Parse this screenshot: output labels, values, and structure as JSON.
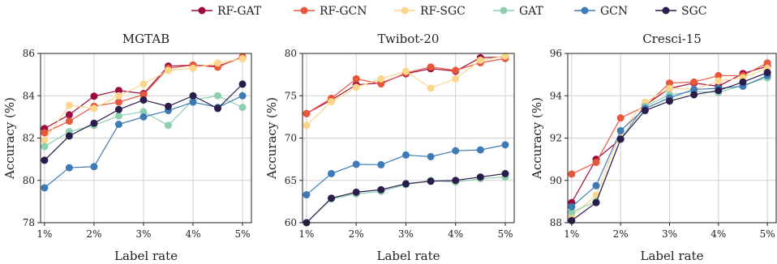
{
  "legend": [
    {
      "name": "RF-GAT",
      "color": "#9b0a3f"
    },
    {
      "name": "RF-GCN",
      "color": "#e8573c"
    },
    {
      "name": "RF-SGC",
      "color": "#fdd58b"
    },
    {
      "name": "GAT",
      "color": "#8fcfb0"
    },
    {
      "name": "GCN",
      "color": "#3e7bb6"
    },
    {
      "name": "SGC",
      "color": "#2b1d4b"
    }
  ],
  "chart_data": [
    {
      "type": "line",
      "title": "MGTAB",
      "xlabel": "Label rate",
      "ylabel": "Accuracy (%)",
      "x": [
        1,
        1.5,
        2,
        2.5,
        3,
        3.5,
        4,
        4.5,
        5
      ],
      "xticks": [
        1,
        2,
        3,
        4,
        5
      ],
      "xtick_labels": [
        "1%",
        "2%",
        "3%",
        "4%",
        "5%"
      ],
      "xlim": [
        0.92,
        5.18
      ],
      "ylim": [
        78,
        86
      ],
      "yticks": [
        78,
        80,
        82,
        84,
        86
      ],
      "grid": true,
      "series": [
        {
          "name": "RF-GAT",
          "values": [
            82.45,
            83.1,
            83.98,
            84.25,
            84.1,
            85.4,
            85.45,
            85.4,
            85.8
          ]
        },
        {
          "name": "RF-GCN",
          "values": [
            82.25,
            82.8,
            83.5,
            83.7,
            84.05,
            85.3,
            85.45,
            85.35,
            85.85
          ]
        },
        {
          "name": "RF-SGC",
          "values": [
            81.9,
            83.55,
            83.4,
            84.0,
            84.55,
            85.2,
            85.3,
            85.55,
            85.75
          ]
        },
        {
          "name": "GAT",
          "values": [
            81.6,
            82.3,
            82.6,
            83.05,
            83.25,
            82.6,
            83.8,
            84.0,
            83.45
          ]
        },
        {
          "name": "GCN",
          "values": [
            79.65,
            80.6,
            80.65,
            82.65,
            83.0,
            83.3,
            83.7,
            83.45,
            84.0
          ]
        },
        {
          "name": "SGC",
          "values": [
            80.95,
            82.1,
            82.7,
            83.35,
            83.8,
            83.5,
            84.0,
            83.4,
            84.55
          ]
        }
      ]
    },
    {
      "type": "line",
      "title": "Twibot-20",
      "xlabel": "Label rate",
      "ylabel": "Accuracy (%)",
      "x": [
        1,
        1.5,
        2,
        2.5,
        3,
        3.5,
        4,
        4.5,
        5
      ],
      "xticks": [
        1,
        2,
        3,
        4,
        5
      ],
      "xtick_labels": [
        "1%",
        "2%",
        "3%",
        "4%",
        "5%"
      ],
      "xlim": [
        0.92,
        5.18
      ],
      "ylim": [
        60,
        80
      ],
      "yticks": [
        60,
        65,
        70,
        75,
        80
      ],
      "grid": true,
      "series": [
        {
          "name": "RF-GAT",
          "values": [
            72.9,
            74.5,
            76.3,
            76.5,
            77.6,
            78.2,
            77.9,
            79.5,
            79.6
          ]
        },
        {
          "name": "RF-GCN",
          "values": [
            72.9,
            74.7,
            77.0,
            76.4,
            77.7,
            78.4,
            78.0,
            78.9,
            79.4
          ]
        },
        {
          "name": "RF-SGC",
          "values": [
            71.5,
            74.3,
            76.0,
            77.0,
            77.9,
            75.9,
            77.0,
            79.2,
            79.7
          ]
        },
        {
          "name": "GAT",
          "values": [
            60.0,
            62.8,
            63.4,
            63.7,
            64.5,
            65.0,
            64.8,
            65.2,
            65.4
          ]
        },
        {
          "name": "GCN",
          "values": [
            63.3,
            65.8,
            66.9,
            66.85,
            68.0,
            67.8,
            68.5,
            68.6,
            69.2
          ]
        },
        {
          "name": "SGC",
          "values": [
            60.0,
            62.9,
            63.6,
            63.9,
            64.6,
            64.9,
            65.0,
            65.4,
            65.8
          ]
        }
      ]
    },
    {
      "type": "line",
      "title": "Cresci-15",
      "xlabel": "Label rate",
      "ylabel": "Accuracy (%)",
      "x": [
        1,
        1.5,
        2,
        2.5,
        3,
        3.5,
        4,
        4.5,
        5
      ],
      "xticks": [
        1,
        2,
        3,
        4,
        5
      ],
      "xtick_labels": [
        "1%",
        "2%",
        "3%",
        "4%",
        "5%"
      ],
      "xlim": [
        0.92,
        5.18
      ],
      "ylim": [
        88,
        96
      ],
      "yticks": [
        88,
        90,
        92,
        94,
        96
      ],
      "grid": true,
      "series": [
        {
          "name": "RF-GAT",
          "values": [
            88.95,
            91.0,
            91.95,
            93.55,
            94.35,
            94.6,
            94.45,
            95.05,
            95.4
          ]
        },
        {
          "name": "RF-GCN",
          "values": [
            90.3,
            90.85,
            92.95,
            93.5,
            94.6,
            94.65,
            94.95,
            94.95,
            95.55
          ]
        },
        {
          "name": "RF-SGC",
          "values": [
            88.3,
            89.3,
            92.3,
            93.7,
            94.35,
            94.3,
            94.7,
            94.85,
            95.3
          ]
        },
        {
          "name": "GAT",
          "values": [
            88.5,
            89.0,
            91.95,
            93.5,
            94.05,
            94.2,
            94.15,
            94.5,
            94.85
          ]
        },
        {
          "name": "GCN",
          "values": [
            88.75,
            89.75,
            92.35,
            93.4,
            93.9,
            94.3,
            94.35,
            94.45,
            94.95
          ]
        },
        {
          "name": "SGC",
          "values": [
            88.1,
            88.95,
            91.95,
            93.3,
            93.75,
            94.05,
            94.25,
            94.65,
            95.1
          ]
        }
      ]
    }
  ]
}
